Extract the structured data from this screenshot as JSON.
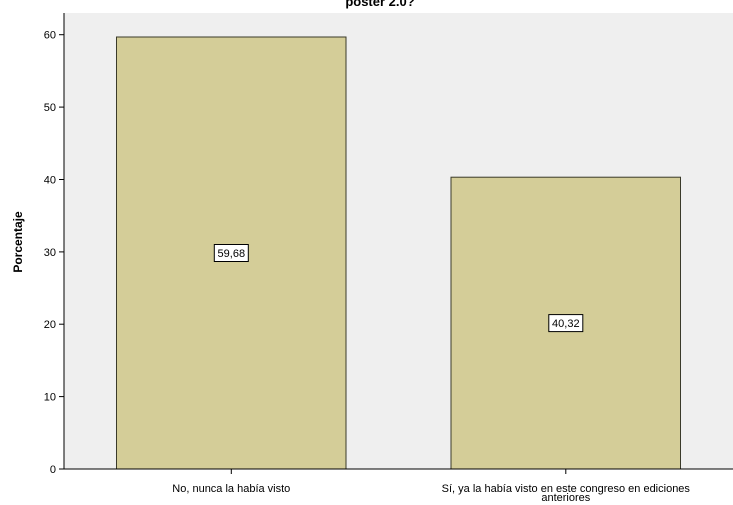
{
  "chart_data": {
    "type": "bar",
    "title": "poster 2.0?",
    "xlabel": "",
    "ylabel": "Porcentaje",
    "ylim": [
      0,
      63
    ],
    "yticks": [
      0,
      10,
      20,
      30,
      40,
      50,
      60
    ],
    "grid": false,
    "categories": [
      [
        "No, nunca la había visto"
      ],
      [
        "Sí, ya la había visto en este congreso en ediciones",
        "anteriores"
      ]
    ],
    "values": [
      59.68,
      40.32
    ],
    "data_labels": [
      "59,68",
      "40,32"
    ],
    "colors": {
      "bar_fill": "#d4cd98",
      "bar_stroke": "#3a3a2a",
      "plot_background": "#efefef",
      "axis": "#000000"
    }
  }
}
